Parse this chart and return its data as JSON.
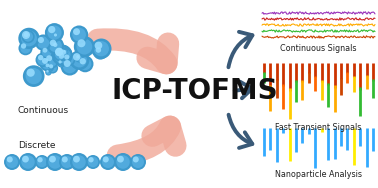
{
  "title": "ICP-TOFMS",
  "title_fontsize": 20,
  "title_fontweight": "bold",
  "title_color": "#111111",
  "background_color": "#ffffff",
  "label_continuous": "Continuous",
  "label_discrete": "Discrete",
  "label_cont_signals": "Continuous Signals",
  "label_fast_signals": "Fast Transient Signals",
  "label_nano": "Nanoparticle Analysis",
  "cont_line_colors": [
    "#9933bb",
    "#cc2222",
    "#ffaa00",
    "#33bb33",
    "#cc4400"
  ],
  "transient_colors_top": [
    "#33bb33",
    "#ffaa00",
    "#cc4400",
    "#ff6600",
    "#ffcc00",
    "#33bb33",
    "#ffaa00",
    "#cc4400",
    "#ff6600",
    "#ffcc00",
    "#33bb33",
    "#ffaa00",
    "#cc4400",
    "#ff6600",
    "#ffcc00",
    "#33bb33",
    "#ffaa00"
  ],
  "nano_colors_list": [
    "#33aaff",
    "#33aaff",
    "#33aaff",
    "#33aaff",
    "#ffee00",
    "#33aaff",
    "#33aaff",
    "#33aaff",
    "#33aaff",
    "#ffee00",
    "#33aaff",
    "#33aaff",
    "#33aaff",
    "#33aaff",
    "#ffee00",
    "#33aaff",
    "#33aaff"
  ],
  "arrow_salmon": "#f0a898",
  "arrow_dark": "#3a5a78",
  "sphere_base": "#3d99cc",
  "sphere_hi": "#99ddff",
  "sphere_mid": "#66bbee"
}
